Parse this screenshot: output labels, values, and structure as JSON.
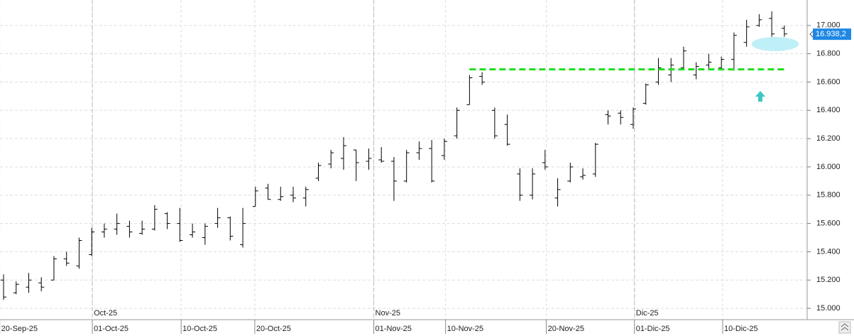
{
  "chart_data": {
    "type": "ohlc",
    "color": "#000000",
    "open": [
      15200,
      15110,
      15150,
      15180,
      15200,
      15350,
      15300,
      15380,
      15540,
      15560,
      15580,
      15530,
      15560,
      15670,
      15600,
      15520,
      15500,
      15600,
      15640,
      15450,
      15720,
      15850,
      15770,
      15800,
      15780,
      15920,
      16020,
      16060,
      16120,
      16040,
      16050,
      16040,
      15900,
      16100,
      16130,
      16080,
      16220,
      16440,
      16640,
      16400,
      16300,
      15950,
      15800,
      16030,
      15780,
      15900,
      15930,
      15950,
      16370,
      16380,
      16300,
      16450,
      16600,
      16650,
      16700,
      16650,
      16720,
      16700,
      16760,
      16880,
      17000,
      17050,
      16980
    ],
    "high": [
      15240,
      15190,
      15250,
      15220,
      15370,
      15400,
      15500,
      15570,
      15600,
      15670,
      15620,
      15620,
      15730,
      15680,
      15710,
      15600,
      15600,
      15710,
      15650,
      15710,
      15860,
      15880,
      15860,
      15860,
      15860,
      16030,
      16120,
      16210,
      16120,
      16130,
      16140,
      16070,
      16120,
      16180,
      16190,
      16200,
      16420,
      16650,
      16670,
      16420,
      16370,
      15990,
      15990,
      16120,
      15920,
      16030,
      15990,
      16170,
      16400,
      16400,
      16420,
      16590,
      16770,
      16770,
      16850,
      16740,
      16800,
      16780,
      16950,
      17040,
      17080,
      17100,
      17000
    ],
    "low": [
      15060,
      15100,
      15110,
      15120,
      15200,
      15300,
      15280,
      15370,
      15500,
      15520,
      15500,
      15520,
      15550,
      15560,
      15470,
      15500,
      15450,
      15570,
      15480,
      15430,
      15720,
      15770,
      15760,
      15750,
      15720,
      15900,
      15990,
      15980,
      15900,
      15980,
      16030,
      15760,
      15890,
      16050,
      15890,
      16050,
      16200,
      16440,
      16580,
      16200,
      16150,
      15760,
      15770,
      15980,
      15720,
      15890,
      15910,
      15930,
      16300,
      16300,
      16270,
      16440,
      16580,
      16600,
      16690,
      16620,
      16690,
      16690,
      16680,
      16850,
      16990,
      16920,
      16920
    ],
    "close": [
      15080,
      15170,
      15200,
      15150,
      15350,
      15320,
      15480,
      15540,
      15560,
      15600,
      15540,
      15560,
      15700,
      15600,
      15480,
      15540,
      15580,
      15640,
      15510,
      15600,
      15830,
      15770,
      15790,
      15780,
      15840,
      16010,
      16100,
      16150,
      16030,
      16060,
      16040,
      15900,
      16100,
      16130,
      15900,
      16180,
      16400,
      16630,
      16600,
      16220,
      16160,
      15800,
      15950,
      16000,
      15840,
      16000,
      15940,
      16160,
      16360,
      16350,
      16410,
      16580,
      16700,
      16720,
      16820,
      16710,
      16740,
      16760,
      16930,
      16990,
      17040,
      16940,
      16940
    ],
    "ylim": [
      14920,
      17180
    ],
    "yticks": [
      {
        "value": 15000,
        "label": "15.000"
      },
      {
        "value": 15200,
        "label": "15.200"
      },
      {
        "value": 15400,
        "label": "15.400"
      },
      {
        "value": 15600,
        "label": "15.600"
      },
      {
        "value": 15800,
        "label": "15.800"
      },
      {
        "value": 16000,
        "label": "16.000"
      },
      {
        "value": 16200,
        "label": "16.200"
      },
      {
        "value": 16400,
        "label": "16.400"
      },
      {
        "value": 16600,
        "label": "16.600"
      },
      {
        "value": 16800,
        "label": "16.800"
      },
      {
        "value": 17000,
        "label": "17.000"
      }
    ],
    "xticks": [
      {
        "value": -0.3,
        "label": "20-Sep-25"
      },
      {
        "value": 7.05,
        "label": "01-Oct-25"
      },
      {
        "value": 14.1,
        "label": "10-Oct-25"
      },
      {
        "value": 19.95,
        "label": "20-Oct-25"
      },
      {
        "value": 29.4,
        "label": "01-Nov-25"
      },
      {
        "value": 35.1,
        "label": "10-Nov-25"
      },
      {
        "value": 43.1,
        "label": "20-Nov-25"
      },
      {
        "value": 50.1,
        "label": "01-Dic-25"
      },
      {
        "value": 57.1,
        "label": "10-Dic-25"
      }
    ],
    "month_ticks": [
      {
        "value": 7.05,
        "label": "Oct-25"
      },
      {
        "value": 29.4,
        "label": "Nov-25"
      },
      {
        "value": 50.1,
        "label": "Dic-25"
      }
    ],
    "level": {
      "value": 16690,
      "start": 37,
      "color": "#22dd22"
    },
    "last_price": {
      "value": 16938.2,
      "label": "16.938,2",
      "color": "#1e88e5"
    },
    "grid": true
  }
}
